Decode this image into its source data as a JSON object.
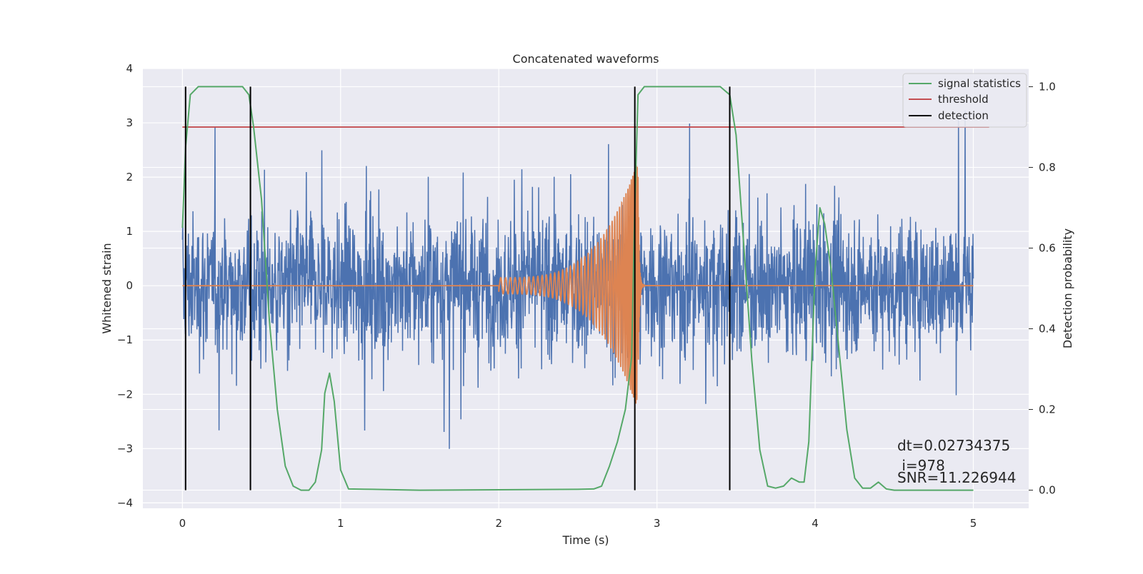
{
  "chart_data": {
    "type": "line",
    "title": "Concatenated waveforms",
    "xlabel": "Time (s)",
    "ylabel": "Whitened strain",
    "y2label": "Detection probability",
    "xlim": [
      -0.25,
      5.35
    ],
    "ylim": [
      -4.1,
      4.0
    ],
    "y2lim": [
      -0.045,
      1.045
    ],
    "xticks": [
      0,
      1,
      2,
      3,
      4,
      5
    ],
    "xtick_labels": [
      "0",
      "1",
      "2",
      "3",
      "4",
      "5"
    ],
    "yticks": [
      -4,
      -3,
      -2,
      -1,
      0,
      1,
      2,
      3,
      4
    ],
    "ytick_labels": [
      "−4",
      "−3",
      "−2",
      "−1",
      "0",
      "1",
      "2",
      "3",
      "4"
    ],
    "y2ticks": [
      0.0,
      0.2,
      0.4,
      0.6,
      0.8,
      1.0
    ],
    "y2tick_labels": [
      "0.0",
      "0.2",
      "0.4",
      "0.6",
      "0.8",
      "1.0"
    ],
    "grid": true,
    "legend_position": "top-right",
    "legend": [
      {
        "label": "signal statistics",
        "color": "#55a868"
      },
      {
        "label": "threshold",
        "color": "#c44e52"
      },
      {
        "label": "detection",
        "color": "#000000"
      }
    ],
    "colors": {
      "strain": "#4c72b0",
      "template": "#dd8452",
      "signal_statistics": "#55a868",
      "threshold": "#c44e52",
      "detection": "#000000",
      "axes_bg": "#eaeaf2",
      "grid": "#ffffff"
    },
    "strain_noise": {
      "x_start": 0.0,
      "x_end": 5.0,
      "typical_range": [
        -1.8,
        2.2
      ],
      "max": 3.6,
      "min": -3.75
    },
    "template_chirp": {
      "start": 2.0,
      "merger": 2.88,
      "flat_value": 0.0,
      "peak_amplitude": 2.3
    },
    "threshold": {
      "x": [
        0.0,
        5.1
      ],
      "y": 0.9
    },
    "detection_lines": {
      "x": [
        0.02,
        0.43,
        2.86,
        3.46
      ],
      "y_range": [
        0.0,
        1.0
      ]
    },
    "signal_statistics": {
      "x": [
        0.0,
        0.02,
        0.05,
        0.1,
        0.2,
        0.3,
        0.38,
        0.42,
        0.45,
        0.5,
        0.55,
        0.6,
        0.65,
        0.7,
        0.75,
        0.8,
        0.84,
        0.88,
        0.9,
        0.93,
        0.96,
        1.0,
        1.05,
        1.2,
        1.5,
        2.0,
        2.5,
        2.6,
        2.65,
        2.7,
        2.75,
        2.8,
        2.84,
        2.86,
        2.88,
        2.92,
        3.0,
        3.2,
        3.4,
        3.46,
        3.5,
        3.55,
        3.6,
        3.65,
        3.7,
        3.75,
        3.8,
        3.85,
        3.9,
        3.93,
        3.96,
        4.0,
        4.03,
        4.06,
        4.1,
        4.15,
        4.2,
        4.25,
        4.3,
        4.35,
        4.4,
        4.45,
        4.5,
        5.0
      ],
      "y": [
        0.65,
        0.85,
        0.98,
        1.0,
        1.0,
        1.0,
        1.0,
        0.98,
        0.9,
        0.72,
        0.42,
        0.2,
        0.06,
        0.01,
        0.0,
        0.0,
        0.02,
        0.1,
        0.24,
        0.29,
        0.22,
        0.05,
        0.003,
        0.002,
        0.0,
        0.001,
        0.002,
        0.003,
        0.01,
        0.06,
        0.12,
        0.2,
        0.33,
        0.7,
        0.98,
        1.0,
        1.0,
        1.0,
        1.0,
        0.98,
        0.88,
        0.6,
        0.32,
        0.1,
        0.01,
        0.005,
        0.01,
        0.03,
        0.02,
        0.02,
        0.12,
        0.55,
        0.7,
        0.66,
        0.55,
        0.35,
        0.15,
        0.03,
        0.005,
        0.005,
        0.02,
        0.003,
        0.0,
        0.0
      ]
    },
    "annotation": {
      "dt": "dt=0.02734375",
      "i": " i=978",
      "snr": "SNR=11.226944"
    }
  }
}
